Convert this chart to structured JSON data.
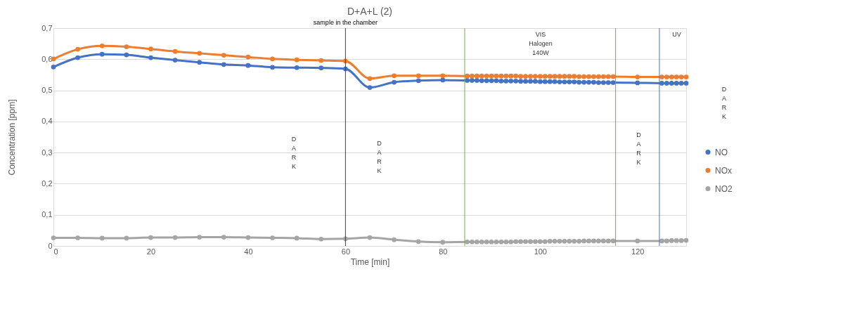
{
  "chart_data": {
    "type": "line",
    "title": "D+A+L (2)",
    "xlabel": "Time [min]",
    "ylabel": "Concentration [ppm]",
    "x": [
      0,
      5,
      10,
      15,
      20,
      25,
      30,
      35,
      40,
      45,
      50,
      55,
      60,
      65,
      70,
      75,
      80,
      85,
      86,
      87,
      88,
      89,
      90,
      91,
      92,
      93,
      94,
      95,
      96,
      97,
      98,
      99,
      100,
      101,
      102,
      103,
      104,
      105,
      106,
      107,
      108,
      109,
      110,
      111,
      112,
      113,
      114,
      115,
      120,
      125,
      126,
      127,
      128,
      129,
      130
    ],
    "series": [
      {
        "name": "NO",
        "color": "#4472c4",
        "values": [
          0.575,
          0.605,
          0.616,
          0.614,
          0.605,
          0.597,
          0.59,
          0.583,
          0.58,
          0.574,
          0.573,
          0.572,
          0.569,
          0.509,
          0.526,
          0.531,
          0.533,
          0.532,
          0.532,
          0.532,
          0.531,
          0.531,
          0.531,
          0.531,
          0.53,
          0.53,
          0.53,
          0.53,
          0.529,
          0.529,
          0.529,
          0.529,
          0.528,
          0.528,
          0.528,
          0.528,
          0.527,
          0.527,
          0.527,
          0.527,
          0.526,
          0.526,
          0.526,
          0.526,
          0.525,
          0.525,
          0.525,
          0.525,
          0.524,
          0.523,
          0.523,
          0.523,
          0.523,
          0.523,
          0.523
        ]
      },
      {
        "name": "NOx",
        "color": "#ed7d31",
        "values": [
          0.601,
          0.632,
          0.643,
          0.64,
          0.633,
          0.625,
          0.619,
          0.613,
          0.607,
          0.601,
          0.598,
          0.596,
          0.594,
          0.538,
          0.547,
          0.547,
          0.547,
          0.546,
          0.546,
          0.546,
          0.546,
          0.546,
          0.546,
          0.546,
          0.546,
          0.546,
          0.546,
          0.546,
          0.545,
          0.545,
          0.545,
          0.545,
          0.545,
          0.545,
          0.545,
          0.545,
          0.545,
          0.545,
          0.545,
          0.545,
          0.544,
          0.544,
          0.544,
          0.544,
          0.544,
          0.544,
          0.544,
          0.544,
          0.543,
          0.543,
          0.543,
          0.543,
          0.543,
          0.543,
          0.543
        ]
      },
      {
        "name": "NO2",
        "color": "#a5a5a5",
        "values": [
          0.026,
          0.026,
          0.025,
          0.025,
          0.027,
          0.027,
          0.028,
          0.028,
          0.027,
          0.026,
          0.025,
          0.022,
          0.023,
          0.027,
          0.02,
          0.014,
          0.012,
          0.013,
          0.013,
          0.013,
          0.013,
          0.013,
          0.013,
          0.013,
          0.013,
          0.013,
          0.013,
          0.014,
          0.014,
          0.014,
          0.014,
          0.014,
          0.014,
          0.014,
          0.015,
          0.015,
          0.015,
          0.015,
          0.015,
          0.015,
          0.015,
          0.016,
          0.016,
          0.016,
          0.016,
          0.016,
          0.016,
          0.016,
          0.016,
          0.016,
          0.016,
          0.017,
          0.017,
          0.017,
          0.018
        ]
      }
    ],
    "xlim": [
      0,
      130
    ],
    "xticks": [
      0,
      20,
      40,
      60,
      80,
      100,
      120
    ],
    "ylim": [
      0,
      0.7
    ],
    "yticks": [
      0,
      {
        "value": 0.1,
        "label": "0,1"
      },
      {
        "value": 0.2,
        "label": "0,2"
      },
      {
        "value": 0.3,
        "label": "0,3"
      },
      {
        "value": 0.4,
        "label": "0,4"
      },
      {
        "value": 0.5,
        "label": "0,5"
      },
      {
        "value": 0.6,
        "label": "0,6"
      },
      {
        "value": 0.7,
        "label": "0,7"
      }
    ],
    "ref_lines": [
      {
        "axis": "x",
        "value": 60,
        "label": "sample in the chamber",
        "color": "#404040"
      },
      {
        "axis": "x",
        "value": 84.5,
        "label": null,
        "color": "#70ad47"
      },
      {
        "axis": "x",
        "value": 115.5,
        "label": null,
        "color": "#70ad47"
      },
      {
        "axis": "x",
        "value": 124.5,
        "label": null,
        "color": "#4472c4"
      }
    ],
    "annotations": [
      "VIS\nHalogen\n140W",
      "UV",
      "DARK",
      "DARK",
      "DARK",
      "DARK"
    ],
    "grid": "y",
    "legend": "right",
    "marker": "circle",
    "line_style": "solid"
  }
}
